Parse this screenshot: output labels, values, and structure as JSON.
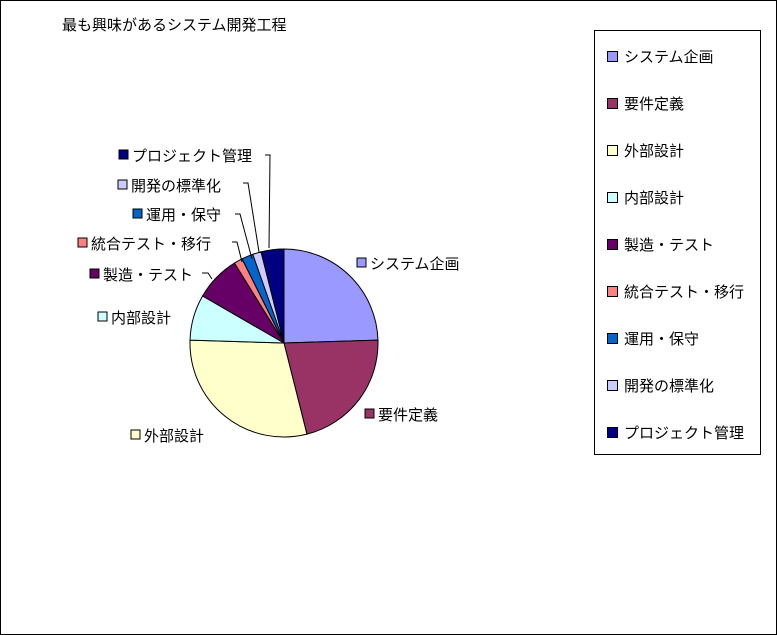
{
  "chart_data": {
    "type": "pie",
    "title": "最も興味があるシステム開発工程",
    "categories": [
      "システム企画",
      "要件定義",
      "外部設計",
      "内部設計",
      "製造・テスト",
      "統合テスト・移行",
      "運用・保守",
      "開発の標準化",
      "プロジェクト管理"
    ],
    "values": [
      25,
      22,
      30,
      8,
      8,
      1.5,
      2,
      1.5,
      4
    ],
    "colors": [
      "#9999ff",
      "#993366",
      "#ffffcc",
      "#ccffff",
      "#660066",
      "#ff8080",
      "#0066cc",
      "#ccccff",
      "#000080"
    ],
    "legend_position": "right",
    "data_labels": "category-name"
  }
}
